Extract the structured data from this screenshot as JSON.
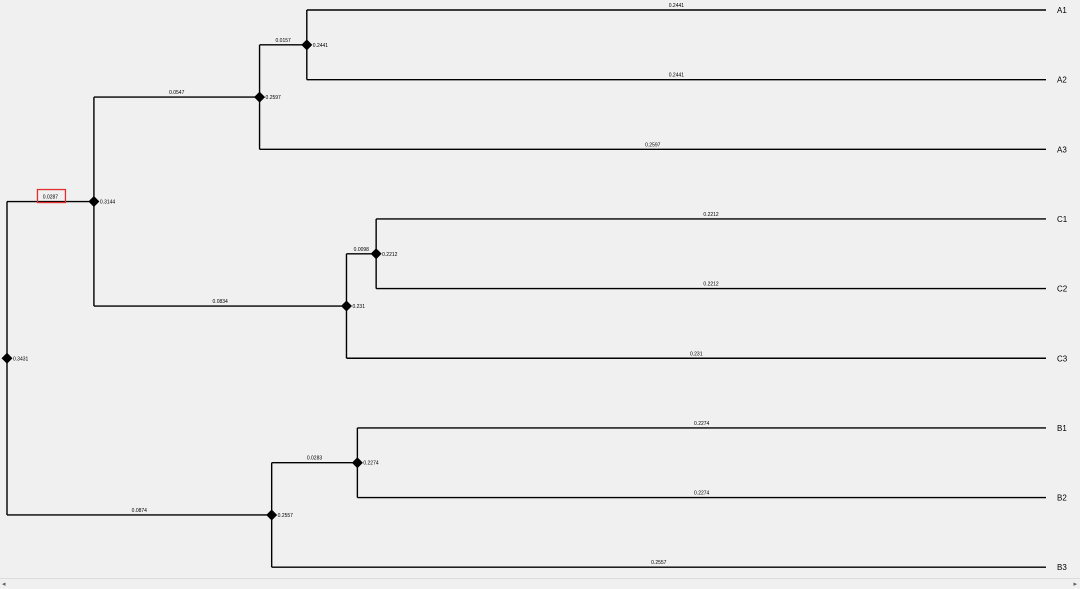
{
  "tree": {
    "leaves": [
      {
        "id": "A1",
        "label": "A1"
      },
      {
        "id": "A2",
        "label": "A2"
      },
      {
        "id": "A3",
        "label": "A3"
      },
      {
        "id": "C1",
        "label": "C1"
      },
      {
        "id": "C2",
        "label": "C2"
      },
      {
        "id": "C3",
        "label": "C3"
      },
      {
        "id": "B1",
        "label": "B1"
      },
      {
        "id": "B2",
        "label": "B2"
      },
      {
        "id": "B3",
        "label": "B3"
      }
    ],
    "nodes": [
      {
        "id": "A12",
        "height": 0.2441,
        "height_label": "0.2441",
        "children": [
          "A1",
          "A2"
        ],
        "child_lengths": [
          "0.2441",
          "0.2441"
        ]
      },
      {
        "id": "A123",
        "height": 0.2597,
        "height_label": "0.2597",
        "children": [
          "A12",
          "A3"
        ],
        "child_lengths": [
          "0.0157",
          "0.2597"
        ]
      },
      {
        "id": "C12",
        "height": 0.2212,
        "height_label": "0.2212",
        "children": [
          "C1",
          "C2"
        ],
        "child_lengths": [
          "0.2212",
          "0.2212"
        ]
      },
      {
        "id": "C123",
        "height": 0.231,
        "height_label": "0.231",
        "children": [
          "C12",
          "C3"
        ],
        "child_lengths": [
          "0.0098",
          "0.231"
        ]
      },
      {
        "id": "AC",
        "height": 0.3144,
        "height_label": "0.3144",
        "children": [
          "A123",
          "C123"
        ],
        "child_lengths": [
          "0.0547",
          "0.0834"
        ]
      },
      {
        "id": "B12",
        "height": 0.2274,
        "height_label": "0.2274",
        "children": [
          "B1",
          "B2"
        ],
        "child_lengths": [
          "0.2274",
          "0.2274"
        ]
      },
      {
        "id": "B123",
        "height": 0.2557,
        "height_label": "0.2557",
        "children": [
          "B12",
          "B3"
        ],
        "child_lengths": [
          "0.0283",
          "0.2557"
        ]
      },
      {
        "id": "root",
        "height": 0.3431,
        "height_label": "0.3431",
        "children": [
          "AC",
          "B123"
        ],
        "child_lengths": [
          "0.0287",
          "0.0874"
        ]
      }
    ],
    "root": "root",
    "highlighted_branch": {
      "node": "AC",
      "label": "0.0287"
    }
  },
  "scrollbar": {
    "left_arrow": "◂",
    "right_arrow": "▸"
  }
}
